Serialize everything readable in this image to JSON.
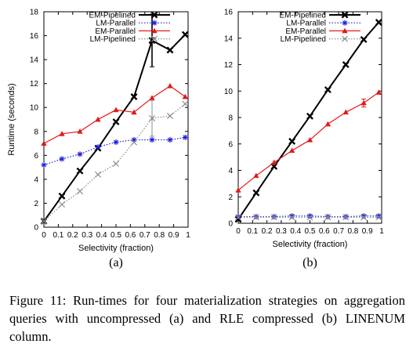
{
  "caption": "Figure 11: Run-times for four materialization strategies on aggregation queries with uncompressed (a) and RLE compressed (b) LINENUM column.",
  "chart_data": [
    {
      "type": "line",
      "panel_label": "(a)",
      "xlabel": "Selectivity (fraction)",
      "ylabel": "Runtime (seconds)",
      "xlim": [
        0,
        1
      ],
      "ylim": [
        0,
        18
      ],
      "xticks": [
        "0",
        "0.1",
        "0.2",
        "0.3",
        "0.4",
        "0.5",
        "0.6",
        "0.7",
        "0.8",
        "0.9",
        "1"
      ],
      "yticks": [
        "0",
        "2",
        "4",
        "6",
        "8",
        "10",
        "12",
        "14",
        "16",
        "18"
      ],
      "grid": false,
      "legend": "top-left",
      "series": [
        {
          "name": "EM-Pipelined",
          "color": "#000000",
          "marker": "x",
          "style": "solid",
          "x": [
            0,
            0.125,
            0.25,
            0.375,
            0.5,
            0.625,
            0.75,
            0.875,
            0.98
          ],
          "y": [
            0.5,
            2.6,
            4.7,
            6.6,
            8.8,
            10.9,
            15.6,
            14.8,
            16.1
          ],
          "error": [
            0,
            0,
            0,
            0,
            0,
            0,
            2.2,
            0,
            0
          ]
        },
        {
          "name": "LM-Parallel",
          "color": "#1f1fdd",
          "marker": "*",
          "style": "dotted",
          "x": [
            0,
            0.125,
            0.25,
            0.375,
            0.5,
            0.625,
            0.75,
            0.875,
            0.98
          ],
          "y": [
            5.2,
            5.7,
            6.1,
            6.7,
            7.1,
            7.3,
            7.3,
            7.3,
            7.5
          ],
          "error": [
            0,
            0,
            0,
            0,
            0,
            0,
            0,
            0,
            0
          ]
        },
        {
          "name": "EM-Parallel",
          "color": "#e11a1a",
          "marker": "triangle",
          "style": "solid",
          "x": [
            0,
            0.125,
            0.25,
            0.375,
            0.5,
            0.625,
            0.75,
            0.875,
            0.98
          ],
          "y": [
            7.0,
            7.8,
            8.0,
            9.0,
            9.8,
            9.6,
            10.8,
            11.8,
            10.9
          ],
          "error": [
            0,
            0,
            0,
            0,
            0,
            0,
            0,
            0,
            0
          ]
        },
        {
          "name": "LM-Pipelined",
          "color": "#8c8c8c",
          "marker": "x",
          "style": "dotted",
          "x": [
            0,
            0.125,
            0.25,
            0.375,
            0.5,
            0.625,
            0.75,
            0.875,
            0.98
          ],
          "y": [
            0.5,
            1.9,
            3.0,
            4.4,
            5.3,
            7.1,
            9.1,
            9.3,
            10.3
          ],
          "error": [
            0,
            0,
            0,
            0,
            0,
            0,
            1.5,
            0,
            0
          ]
        }
      ]
    },
    {
      "type": "line",
      "panel_label": "(b)",
      "xlabel": "Selectivity (fraction)",
      "ylabel": "",
      "xlim": [
        0,
        1
      ],
      "ylim": [
        0,
        16
      ],
      "xticks": [
        "0",
        "0.1",
        "0.2",
        "0.3",
        "0.4",
        "0.5",
        "0.6",
        "0.7",
        "0.8",
        "0.9",
        "1"
      ],
      "yticks": [
        "0",
        "2",
        "4",
        "6",
        "8",
        "10",
        "12",
        "14",
        "16"
      ],
      "grid": false,
      "legend": "top-left",
      "series": [
        {
          "name": "EM-Pipelined",
          "color": "#000000",
          "marker": "x",
          "style": "solid",
          "x": [
            0,
            0.125,
            0.25,
            0.375,
            0.5,
            0.625,
            0.75,
            0.875,
            0.98
          ],
          "y": [
            0.3,
            2.3,
            4.3,
            6.2,
            8.1,
            10.1,
            12.0,
            13.9,
            15.2
          ],
          "error": [
            0,
            0,
            0,
            0,
            0,
            0,
            0,
            0,
            0
          ]
        },
        {
          "name": "LM-Parallel",
          "color": "#1f1fdd",
          "marker": "*",
          "style": "dotted",
          "x": [
            0,
            0.125,
            0.25,
            0.375,
            0.5,
            0.625,
            0.75,
            0.875,
            0.98
          ],
          "y": [
            0.5,
            0.5,
            0.5,
            0.55,
            0.55,
            0.5,
            0.5,
            0.55,
            0.55
          ],
          "error": [
            0,
            0,
            0,
            0,
            0,
            0,
            0,
            0,
            0
          ]
        },
        {
          "name": "EM-Parallel",
          "color": "#e11a1a",
          "marker": "triangle",
          "style": "solid",
          "x": [
            0,
            0.125,
            0.25,
            0.375,
            0.5,
            0.625,
            0.75,
            0.875,
            0.98
          ],
          "y": [
            2.5,
            3.6,
            4.6,
            5.5,
            6.3,
            7.5,
            8.4,
            9.1,
            9.9
          ],
          "error": [
            0,
            0,
            0,
            0,
            0,
            0,
            0,
            0.3,
            0
          ]
        },
        {
          "name": "LM-Pipelined",
          "color": "#8c8c8c",
          "marker": "x",
          "style": "dotted",
          "x": [
            0,
            0.125,
            0.25,
            0.375,
            0.5,
            0.625,
            0.75,
            0.875,
            0.98
          ],
          "y": [
            0.45,
            0.45,
            0.45,
            0.45,
            0.45,
            0.45,
            0.45,
            0.45,
            0.45
          ],
          "error": [
            0,
            0,
            0,
            0,
            0,
            0,
            0,
            0,
            0
          ]
        }
      ]
    }
  ]
}
